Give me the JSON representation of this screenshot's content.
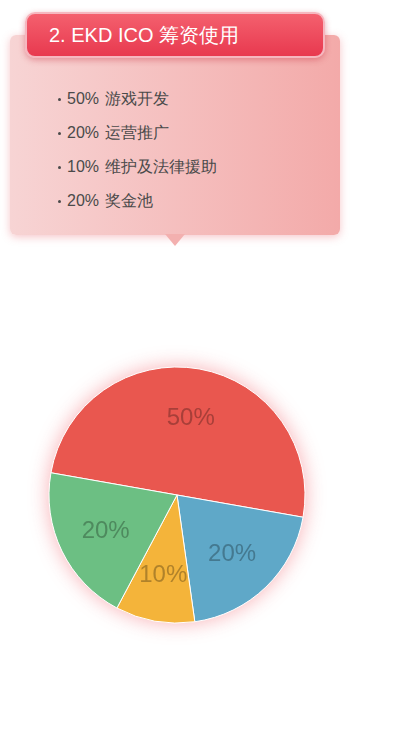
{
  "chart_data": {
    "type": "pie",
    "title": "2. EKD ICO 筹资使用",
    "categories": [
      "游戏开发",
      "运营推广",
      "维护及法律援助",
      "奖金池"
    ],
    "values": [
      50,
      20,
      10,
      20
    ],
    "value_labels": [
      "50%",
      "20%",
      "10%",
      "20%"
    ],
    "colors": [
      "#e9574f",
      "#5fa8c8",
      "#f4b43a",
      "#6cbf83"
    ],
    "data_labels": true
  }
}
